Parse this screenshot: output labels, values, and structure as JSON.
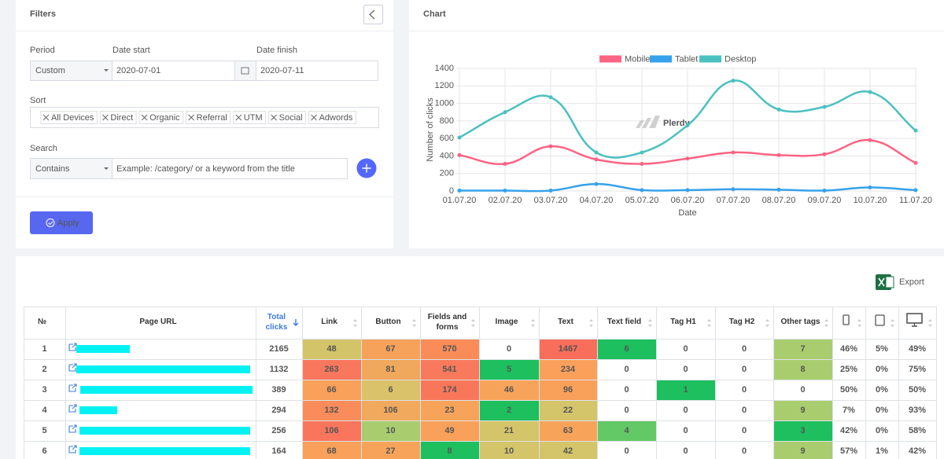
{
  "filters": {
    "title": "Filters",
    "period_label": "Period",
    "date_start_label": "Date start",
    "date_finish_label": "Date finish",
    "period": "Custom",
    "date_start": "2020-07-01",
    "date_finish": "2020-07-11",
    "sort_label": "Sort",
    "sort_tags": [
      "All Devices",
      "Direct",
      "Organic",
      "Referral",
      "UTM",
      "Social",
      "Adwords"
    ],
    "search_label": "Search",
    "search_mode": "Contains",
    "search_placeholder": "Example: /category/ or a keyword from the title",
    "apply": "Apply"
  },
  "chart_title": "Chart",
  "chart_data": {
    "type": "line",
    "watermark": "Plerdy",
    "x_label": "Date",
    "y_label": "Number of clicks",
    "categories": [
      "01.07.20",
      "02.07.20",
      "03.07.20",
      "04.07.20",
      "05.07.20",
      "06.07.20",
      "07.07.20",
      "08.07.20",
      "09.07.20",
      "10.07.20",
      "11.07.20"
    ],
    "series": [
      {
        "name": "Mobile",
        "color": "#ff6384",
        "values": [
          410,
          310,
          510,
          360,
          310,
          370,
          440,
          410,
          420,
          580,
          320
        ]
      },
      {
        "name": "Tablet",
        "color": "#36a2eb",
        "values": [
          5,
          5,
          5,
          80,
          10,
          10,
          20,
          15,
          5,
          40,
          10
        ]
      },
      {
        "name": "Desktop",
        "color": "#4bc0c0",
        "values": [
          610,
          900,
          1070,
          440,
          440,
          750,
          1260,
          930,
          960,
          1130,
          690
        ]
      }
    ],
    "ylim": [
      0,
      1400
    ],
    "yticks": [
      0,
      200,
      400,
      600,
      800,
      1000,
      1200,
      1400
    ],
    "grid": true,
    "smooth": true
  },
  "table": {
    "export": "Export",
    "headers": [
      "№",
      "Page URL",
      "Total clicks",
      "Link",
      "Button",
      "Fields and forms",
      "Image",
      "Text",
      "Text field",
      "Tag H1",
      "Tag H2",
      "Other tags"
    ],
    "rows": [
      {
        "no": 1,
        "total_clicks": 2165,
        "cells": [
          48,
          67,
          570,
          0,
          1467,
          6,
          0,
          0,
          7
        ],
        "colors": [
          "#d3c46a",
          "#f7a25b",
          "#fa8c5a",
          "#ffffff",
          "#f86e5b",
          "#1dbf5e",
          "#ffffff",
          "#ffffff",
          "#a9cd6e"
        ],
        "shares": [
          "46%",
          "5%",
          "49%"
        ]
      },
      {
        "no": 2,
        "total_clicks": 1132,
        "cells": [
          263,
          81,
          541,
          5,
          234,
          0,
          0,
          0,
          8
        ],
        "colors": [
          "#f9775c",
          "#f0a85c",
          "#f8795b",
          "#1dbf5e",
          "#faa05b",
          "#ffffff",
          "#ffffff",
          "#ffffff",
          "#a9cd6e"
        ],
        "shares": [
          "25%",
          "0%",
          "75%"
        ]
      },
      {
        "no": 3,
        "total_clicks": 389,
        "cells": [
          66,
          6,
          174,
          46,
          96,
          0,
          1,
          0,
          0
        ],
        "colors": [
          "#f9a05a",
          "#d9c269",
          "#f8775b",
          "#f7a45a",
          "#f9a05a",
          "#ffffff",
          "#1dbf5e",
          "#ffffff",
          "#ffffff"
        ],
        "shares": [
          "50%",
          "0%",
          "50%"
        ]
      },
      {
        "no": 4,
        "total_clicks": 294,
        "cells": [
          132,
          106,
          23,
          2,
          22,
          0,
          0,
          0,
          9
        ],
        "colors": [
          "#fa8b5a",
          "#f0a95d",
          "#f7a45a",
          "#1dbf5e",
          "#d4c46a",
          "#ffffff",
          "#ffffff",
          "#ffffff",
          "#a9cd6e"
        ],
        "shares": [
          "7%",
          "0%",
          "93%"
        ]
      },
      {
        "no": 5,
        "total_clicks": 256,
        "cells": [
          106,
          10,
          49,
          21,
          63,
          4,
          0,
          0,
          3
        ],
        "colors": [
          "#f9755c",
          "#a9cd6e",
          "#f9a05a",
          "#d4c46a",
          "#f7a45a",
          "#63c866",
          "#ffffff",
          "#ffffff",
          "#1dbf5e"
        ],
        "shares": [
          "42%",
          "0%",
          "58%"
        ]
      },
      {
        "no": 6,
        "total_clicks": 164,
        "cells": [
          68,
          27,
          8,
          10,
          42,
          0,
          0,
          0,
          9
        ],
        "colors": [
          "#f9a05a",
          "#f7a45a",
          "#1dbf5e",
          "#d4c46a",
          "#d4c46a",
          "#ffffff",
          "#ffffff",
          "#ffffff",
          "#a9cd6e"
        ],
        "shares": [
          "57%",
          "1%",
          "42%"
        ]
      }
    ]
  }
}
